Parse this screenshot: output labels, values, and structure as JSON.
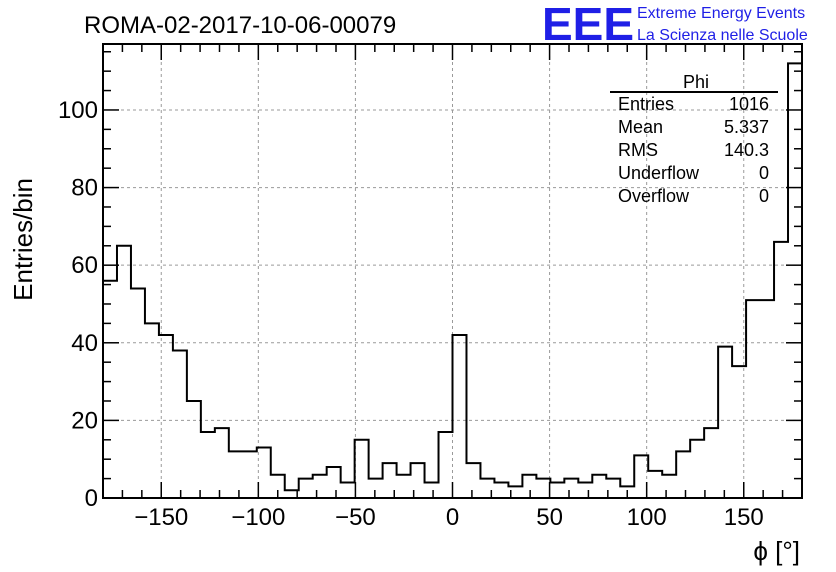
{
  "title": "ROMA-02-2017-10-06-00079",
  "logo": {
    "text": "EEE",
    "line1": "Extreme Energy Events",
    "line2": "La Scienza nelle Scuole",
    "color": "#1f1fe6"
  },
  "stats": {
    "name": "Phi",
    "rows": [
      {
        "label": "Entries",
        "value": "1016"
      },
      {
        "label": "Mean",
        "value": "5.337"
      },
      {
        "label": "RMS",
        "value": "140.3"
      },
      {
        "label": "Underflow",
        "value": "0"
      },
      {
        "label": "Overflow",
        "value": "0"
      }
    ]
  },
  "chart_data": {
    "type": "bar",
    "style": "step-histogram",
    "title": "ROMA-02-2017-10-06-00079",
    "xlabel": "ϕ [°]",
    "ylabel": "Entries/bin",
    "xlim": [
      -180,
      180
    ],
    "ylim": [
      0,
      117
    ],
    "grid": true,
    "bin_width": 7.2,
    "x_ticks": [
      -150,
      -100,
      -50,
      0,
      50,
      100,
      150
    ],
    "y_ticks": [
      0,
      20,
      40,
      60,
      80,
      100
    ],
    "values": [
      56,
      65,
      54,
      45,
      42,
      38,
      25,
      17,
      18,
      12,
      12,
      13,
      6,
      2,
      5,
      6,
      8,
      4,
      15,
      5,
      9,
      6,
      9,
      4,
      17,
      42,
      9,
      5,
      4,
      3,
      6,
      5,
      4,
      5,
      4,
      6,
      5,
      3,
      11,
      7,
      6,
      12,
      15,
      18,
      39,
      34,
      51,
      51,
      66,
      112
    ]
  }
}
